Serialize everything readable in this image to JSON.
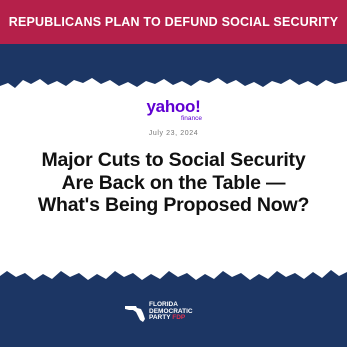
{
  "banner": {
    "text": "REPUBLICANS PLAN TO DEFUND SOCIAL SECURITY",
    "background": "#b5204a"
  },
  "article": {
    "source_logo": "yahoo!",
    "source_sublogo": "finance",
    "date": "July 23, 2024",
    "headline": "Major Cuts to Social Security Are Back on the Table — What's Being Proposed Now?"
  },
  "party_logo": {
    "line1": "FLORIDA",
    "line2": "DEMOCRATIC",
    "line3": "PARTY",
    "line3_accent": "FDP"
  },
  "colors": {
    "navy": "#1c3664",
    "red": "#b5204a",
    "paper": "#ffffff",
    "yahoo_purple": "#6001d2"
  }
}
